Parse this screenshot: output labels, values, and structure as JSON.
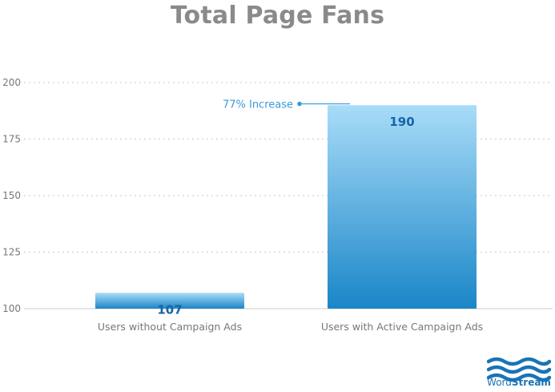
{
  "chart_data": {
    "type": "bar",
    "title": "Total Page Fans",
    "categories": [
      "Users without Campaign Ads",
      "Users with Active Campaign Ads"
    ],
    "values": [
      107,
      190
    ],
    "data_labels": [
      "107",
      "190"
    ],
    "ylim": [
      100,
      200
    ],
    "yticks": [
      100,
      125,
      150,
      175,
      200
    ],
    "ytick_labels": [
      "100",
      "125",
      "150",
      "175",
      "200"
    ],
    "grid": true,
    "annotation": {
      "text": "77% Increase",
      "category_index": 1,
      "y": 192
    },
    "colors": {
      "bar_top": "#a9dcf8",
      "bar_bottom": "#1a86c7",
      "value_label": "#1565a8",
      "annotation": "#3a9ad9",
      "grid": "#c8c8c8",
      "axis_text": "#777777"
    }
  },
  "brand": {
    "name_part1": "Word",
    "name_part2": "Stream",
    "icon": "wave-logo-icon",
    "color": "#1a73b5"
  }
}
